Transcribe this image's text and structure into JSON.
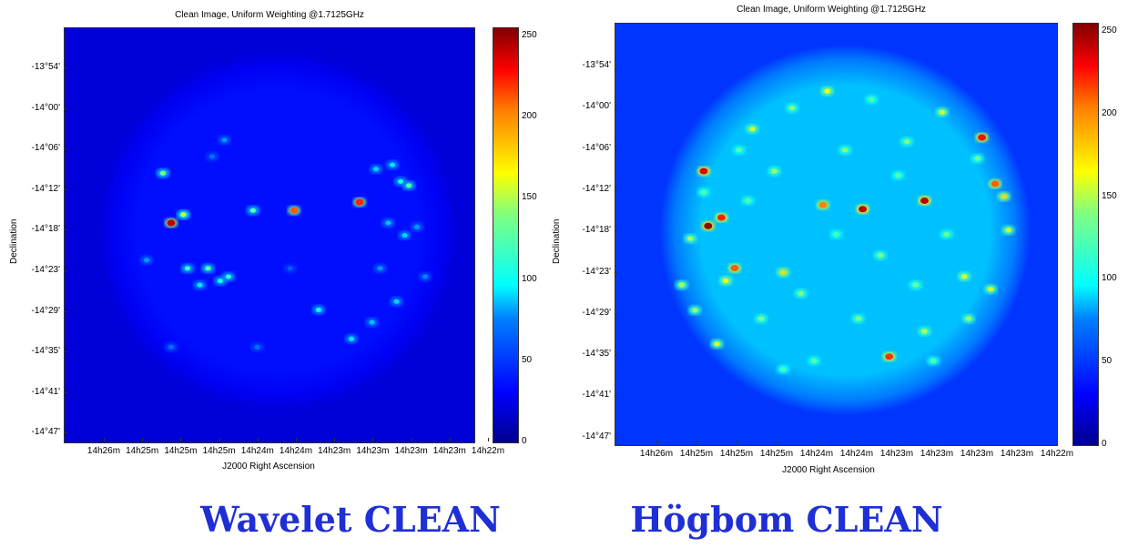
{
  "chart_data": [
    {
      "type": "heatmap",
      "title": "Clean Image, Uniform Weighting @1.7125GHz",
      "xlabel": "J2000 Right Ascension",
      "ylabel": "Declination",
      "x_ticks": [
        "14h26m",
        "14h25m",
        "14h25m",
        "14h25m",
        "14h24m",
        "14h24m",
        "14h23m",
        "14h23m",
        "14h23m",
        "14h23m",
        "14h22m"
      ],
      "y_ticks": [
        "-13°54'",
        "-14°00'",
        "-14°06'",
        "-14°12'",
        "-14°18'",
        "-14°23'",
        "-14°29'",
        "-14°35'",
        "-14°41'",
        "-14°47'"
      ],
      "colorbar": {
        "range": [
          0,
          255
        ],
        "ticks": [
          "0",
          "50",
          "100",
          "150",
          "200",
          "250"
        ],
        "colormap": "jet"
      },
      "caption": "Wavelet CLEAN",
      "background_level": 22,
      "disk_level": 35,
      "sources": [
        {
          "u": 0.26,
          "v": 0.47,
          "value": 240
        },
        {
          "u": 0.29,
          "v": 0.45,
          "value": 150
        },
        {
          "u": 0.24,
          "v": 0.35,
          "value": 130
        },
        {
          "u": 0.56,
          "v": 0.44,
          "value": 200
        },
        {
          "u": 0.72,
          "v": 0.42,
          "value": 215
        },
        {
          "u": 0.46,
          "v": 0.44,
          "value": 120
        },
        {
          "u": 0.3,
          "v": 0.58,
          "value": 110
        },
        {
          "u": 0.35,
          "v": 0.58,
          "value": 120
        },
        {
          "u": 0.38,
          "v": 0.61,
          "value": 100
        },
        {
          "u": 0.4,
          "v": 0.6,
          "value": 105
        },
        {
          "u": 0.33,
          "v": 0.62,
          "value": 90
        },
        {
          "u": 0.84,
          "v": 0.38,
          "value": 120
        },
        {
          "u": 0.82,
          "v": 0.37,
          "value": 100
        },
        {
          "u": 0.8,
          "v": 0.33,
          "value": 90
        },
        {
          "u": 0.76,
          "v": 0.34,
          "value": 85
        },
        {
          "u": 0.79,
          "v": 0.47,
          "value": 80
        },
        {
          "u": 0.83,
          "v": 0.5,
          "value": 85
        },
        {
          "u": 0.86,
          "v": 0.48,
          "value": 70
        },
        {
          "u": 0.81,
          "v": 0.66,
          "value": 85
        },
        {
          "u": 0.75,
          "v": 0.71,
          "value": 80
        },
        {
          "u": 0.7,
          "v": 0.75,
          "value": 90
        },
        {
          "u": 0.62,
          "v": 0.68,
          "value": 100
        },
        {
          "u": 0.39,
          "v": 0.27,
          "value": 70
        },
        {
          "u": 0.36,
          "v": 0.31,
          "value": 60
        },
        {
          "u": 0.2,
          "v": 0.56,
          "value": 70
        },
        {
          "u": 0.77,
          "v": 0.58,
          "value": 70
        },
        {
          "u": 0.88,
          "v": 0.6,
          "value": 65
        },
        {
          "u": 0.26,
          "v": 0.77,
          "value": 60
        },
        {
          "u": 0.47,
          "v": 0.77,
          "value": 60
        },
        {
          "u": 0.55,
          "v": 0.58,
          "value": 55
        }
      ]
    },
    {
      "type": "heatmap",
      "title": "Clean Image, Uniform Weighting @1.7125GHz",
      "xlabel": "J2000 Right Ascension",
      "ylabel": "Declination",
      "x_ticks": [
        "14h26m",
        "14h25m",
        "14h25m",
        "14h25m",
        "14h24m",
        "14h24m",
        "14h23m",
        "14h23m",
        "14h23m",
        "14h23m",
        "14h22m"
      ],
      "y_ticks": [
        "-13°54'",
        "-14°00'",
        "-14°06'",
        "-14°12'",
        "-14°18'",
        "-14°23'",
        "-14°29'",
        "-14°35'",
        "-14°41'",
        "-14°47'"
      ],
      "colorbar": {
        "range": [
          0,
          255
        ],
        "ticks": [
          "0",
          "50",
          "100",
          "150",
          "200",
          "250"
        ],
        "colormap": "jet"
      },
      "caption": "Högbom CLEAN",
      "background_level": 45,
      "disk_level": 80,
      "sources": [
        {
          "u": 0.21,
          "v": 0.48,
          "value": 250
        },
        {
          "u": 0.24,
          "v": 0.46,
          "value": 215
        },
        {
          "u": 0.2,
          "v": 0.35,
          "value": 230
        },
        {
          "u": 0.56,
          "v": 0.44,
          "value": 240
        },
        {
          "u": 0.7,
          "v": 0.42,
          "value": 240
        },
        {
          "u": 0.47,
          "v": 0.43,
          "value": 190
        },
        {
          "u": 0.27,
          "v": 0.58,
          "value": 200
        },
        {
          "u": 0.38,
          "v": 0.59,
          "value": 170
        },
        {
          "u": 0.25,
          "v": 0.61,
          "value": 160
        },
        {
          "u": 0.83,
          "v": 0.27,
          "value": 220
        },
        {
          "u": 0.86,
          "v": 0.38,
          "value": 200
        },
        {
          "u": 0.88,
          "v": 0.41,
          "value": 170
        },
        {
          "u": 0.62,
          "v": 0.79,
          "value": 210
        },
        {
          "u": 0.48,
          "v": 0.16,
          "value": 160
        },
        {
          "u": 0.74,
          "v": 0.21,
          "value": 150
        },
        {
          "u": 0.85,
          "v": 0.63,
          "value": 150
        },
        {
          "u": 0.89,
          "v": 0.49,
          "value": 150
        },
        {
          "u": 0.79,
          "v": 0.6,
          "value": 150
        },
        {
          "u": 0.8,
          "v": 0.7,
          "value": 140
        },
        {
          "u": 0.7,
          "v": 0.73,
          "value": 140
        },
        {
          "u": 0.23,
          "v": 0.76,
          "value": 150
        },
        {
          "u": 0.31,
          "v": 0.25,
          "value": 150
        },
        {
          "u": 0.17,
          "v": 0.51,
          "value": 140
        },
        {
          "u": 0.15,
          "v": 0.62,
          "value": 140
        },
        {
          "u": 0.18,
          "v": 0.68,
          "value": 135
        },
        {
          "u": 0.36,
          "v": 0.35,
          "value": 135
        },
        {
          "u": 0.52,
          "v": 0.3,
          "value": 130
        },
        {
          "u": 0.6,
          "v": 0.55,
          "value": 130
        },
        {
          "u": 0.42,
          "v": 0.64,
          "value": 130
        },
        {
          "u": 0.55,
          "v": 0.7,
          "value": 130
        },
        {
          "u": 0.66,
          "v": 0.28,
          "value": 130
        },
        {
          "u": 0.4,
          "v": 0.2,
          "value": 130
        },
        {
          "u": 0.3,
          "v": 0.42,
          "value": 120
        },
        {
          "u": 0.33,
          "v": 0.7,
          "value": 130
        },
        {
          "u": 0.68,
          "v": 0.62,
          "value": 125
        },
        {
          "u": 0.75,
          "v": 0.5,
          "value": 125
        },
        {
          "u": 0.5,
          "v": 0.5,
          "value": 115
        },
        {
          "u": 0.45,
          "v": 0.8,
          "value": 120
        },
        {
          "u": 0.38,
          "v": 0.82,
          "value": 115
        },
        {
          "u": 0.72,
          "v": 0.8,
          "value": 120
        },
        {
          "u": 0.64,
          "v": 0.36,
          "value": 120
        },
        {
          "u": 0.2,
          "v": 0.4,
          "value": 120
        },
        {
          "u": 0.28,
          "v": 0.3,
          "value": 120
        },
        {
          "u": 0.58,
          "v": 0.18,
          "value": 120
        },
        {
          "u": 0.82,
          "v": 0.32,
          "value": 125
        }
      ]
    }
  ]
}
